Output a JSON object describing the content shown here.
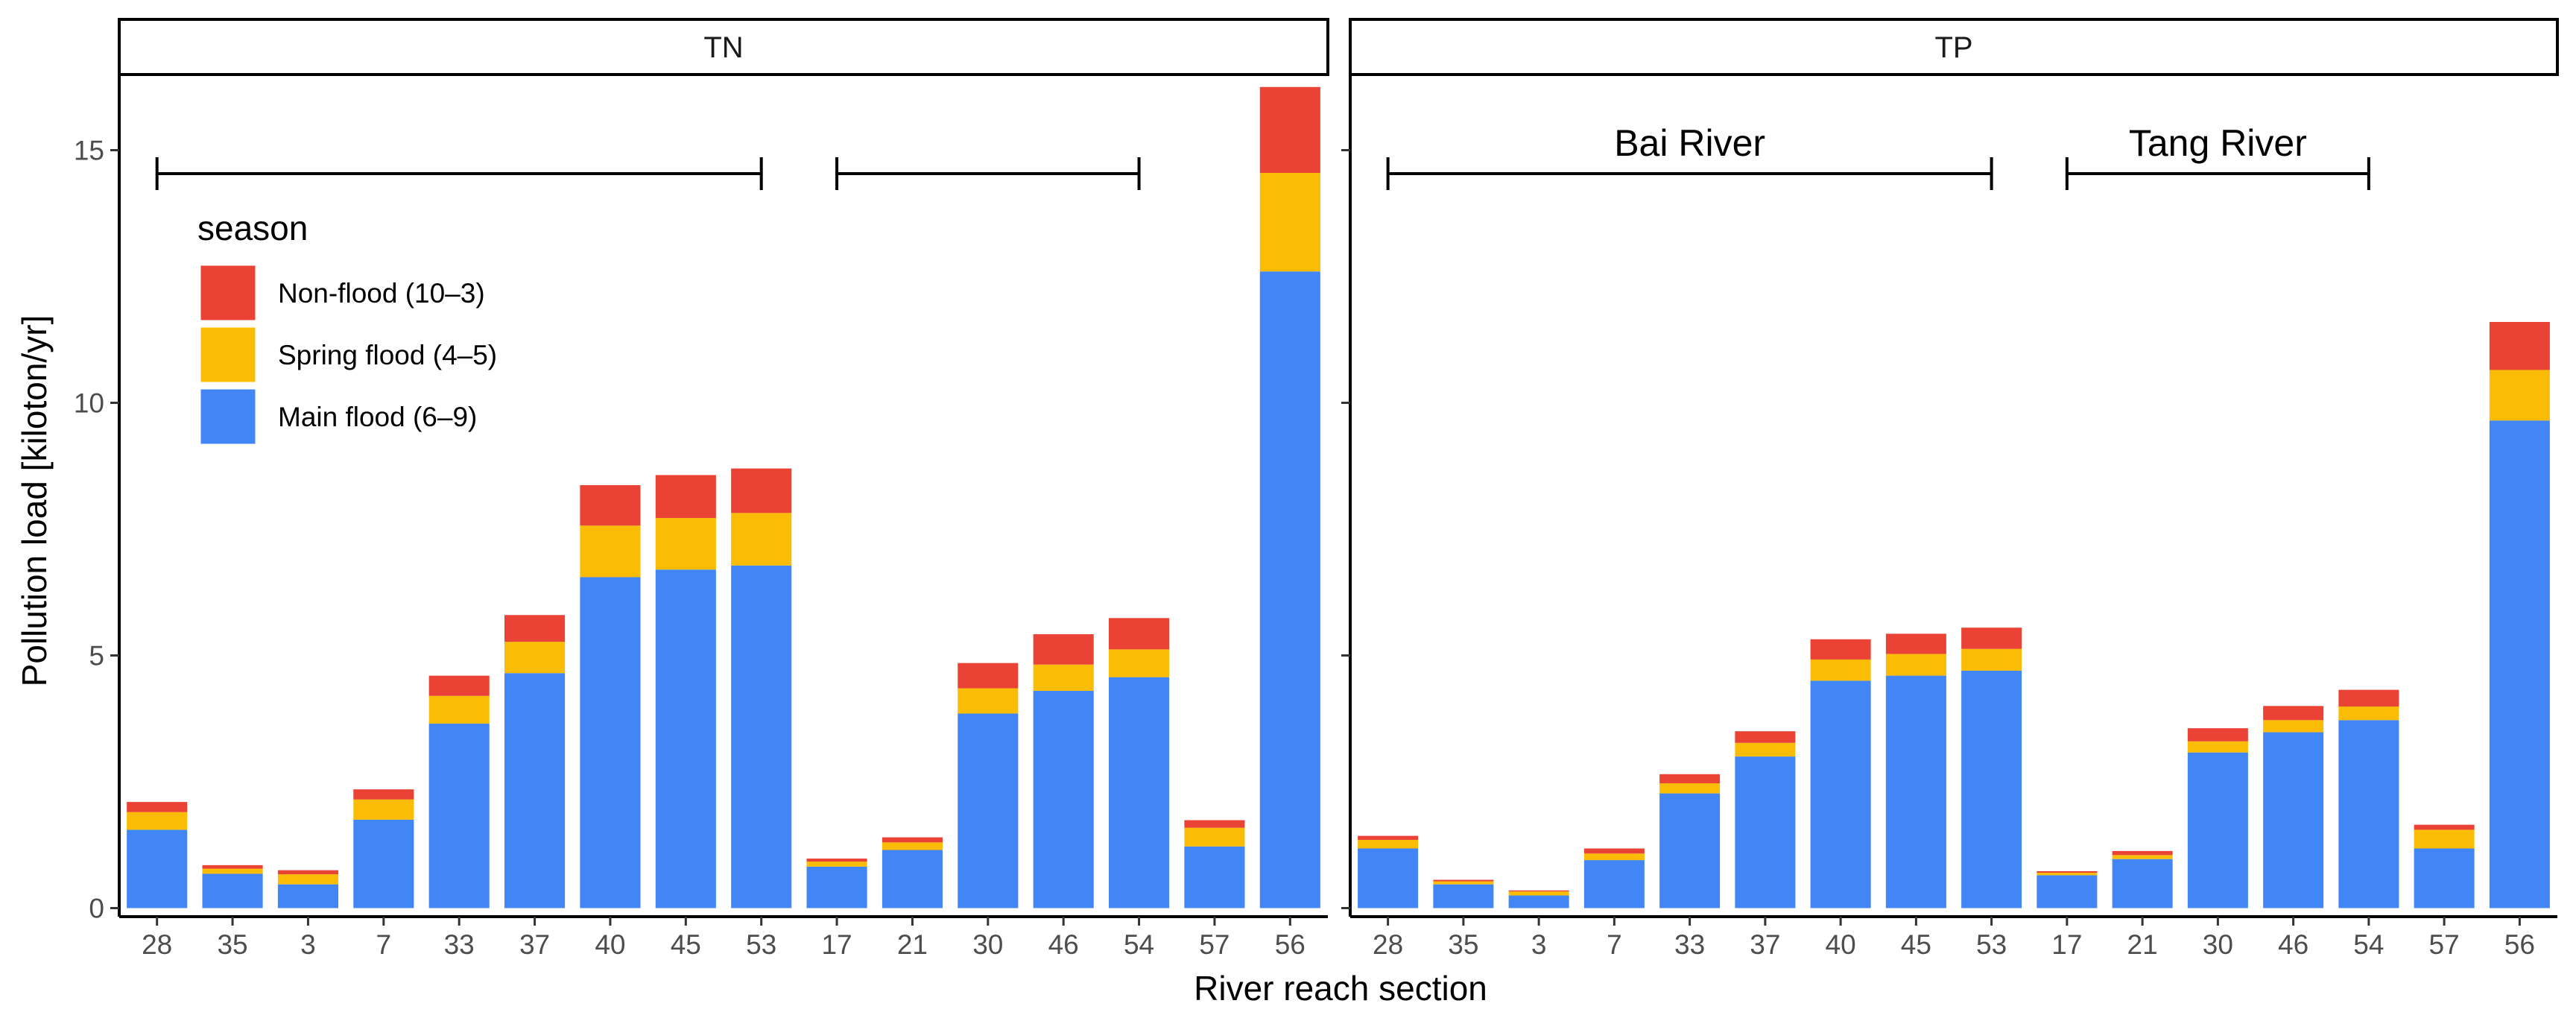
{
  "chart_data": {
    "type": "bar",
    "stacked": true,
    "xlabel": "River reach section",
    "ylabel": "Pollution load [kiloton/yr]",
    "ylim": [
      0,
      16.5
    ],
    "yticks": [
      0,
      5,
      10,
      15
    ],
    "categories": [
      "28",
      "35",
      "3",
      "7",
      "33",
      "37",
      "40",
      "45",
      "53",
      "17",
      "21",
      "30",
      "46",
      "54",
      "57",
      "56"
    ],
    "legend": {
      "title": "season",
      "position": "inside-top-left",
      "items": [
        {
          "label": "Non-flood (10–3)",
          "color": "#EA4335"
        },
        {
          "label": "Spring flood (4–5)",
          "color": "#FBBC05"
        },
        {
          "label": "Main flood (6–9)",
          "color": "#4285F4"
        }
      ]
    },
    "panels": [
      {
        "title": "TN",
        "brackets": [
          {
            "label": "",
            "from": "28",
            "to": "53"
          },
          {
            "label": "",
            "from": "17",
            "to": "54"
          }
        ],
        "series": [
          {
            "name": "Main flood (6–9)",
            "color": "#4285F4",
            "values": [
              1.55,
              0.68,
              0.47,
              1.75,
              3.65,
              4.65,
              6.55,
              6.7,
              6.78,
              0.82,
              1.15,
              3.85,
              4.3,
              4.57,
              1.22,
              12.6
            ]
          },
          {
            "name": "Spring flood (4–5)",
            "color": "#FBBC05",
            "values": [
              0.35,
              0.1,
              0.2,
              0.4,
              0.55,
              0.62,
              1.02,
              1.02,
              1.04,
              0.1,
              0.15,
              0.5,
              0.52,
              0.55,
              0.37,
              1.95
            ]
          },
          {
            "name": "Non-flood (10–3)",
            "color": "#EA4335",
            "values": [
              0.2,
              0.07,
              0.08,
              0.2,
              0.4,
              0.53,
              0.8,
              0.85,
              0.88,
              0.06,
              0.1,
              0.5,
              0.6,
              0.62,
              0.15,
              1.7
            ]
          }
        ]
      },
      {
        "title": "TP",
        "brackets": [
          {
            "label": "Bai River",
            "from": "28",
            "to": "53"
          },
          {
            "label": "Tang River",
            "from": "17",
            "to": "54"
          }
        ],
        "series": [
          {
            "name": "Main flood (6–9)",
            "color": "#4285F4",
            "values": [
              1.18,
              0.47,
              0.25,
              0.95,
              2.27,
              3.0,
              4.5,
              4.6,
              4.7,
              0.65,
              0.97,
              3.08,
              3.48,
              3.72,
              1.18,
              9.65
            ]
          },
          {
            "name": "Spring flood (4–5)",
            "color": "#FBBC05",
            "values": [
              0.17,
              0.06,
              0.08,
              0.13,
              0.2,
              0.27,
              0.42,
              0.43,
              0.43,
              0.05,
              0.08,
              0.22,
              0.24,
              0.27,
              0.37,
              1.0
            ]
          },
          {
            "name": "Non-flood (10–3)",
            "color": "#EA4335",
            "values": [
              0.08,
              0.03,
              0.02,
              0.1,
              0.18,
              0.23,
              0.4,
              0.4,
              0.42,
              0.03,
              0.08,
              0.26,
              0.28,
              0.33,
              0.1,
              0.95
            ]
          }
        ]
      }
    ]
  }
}
